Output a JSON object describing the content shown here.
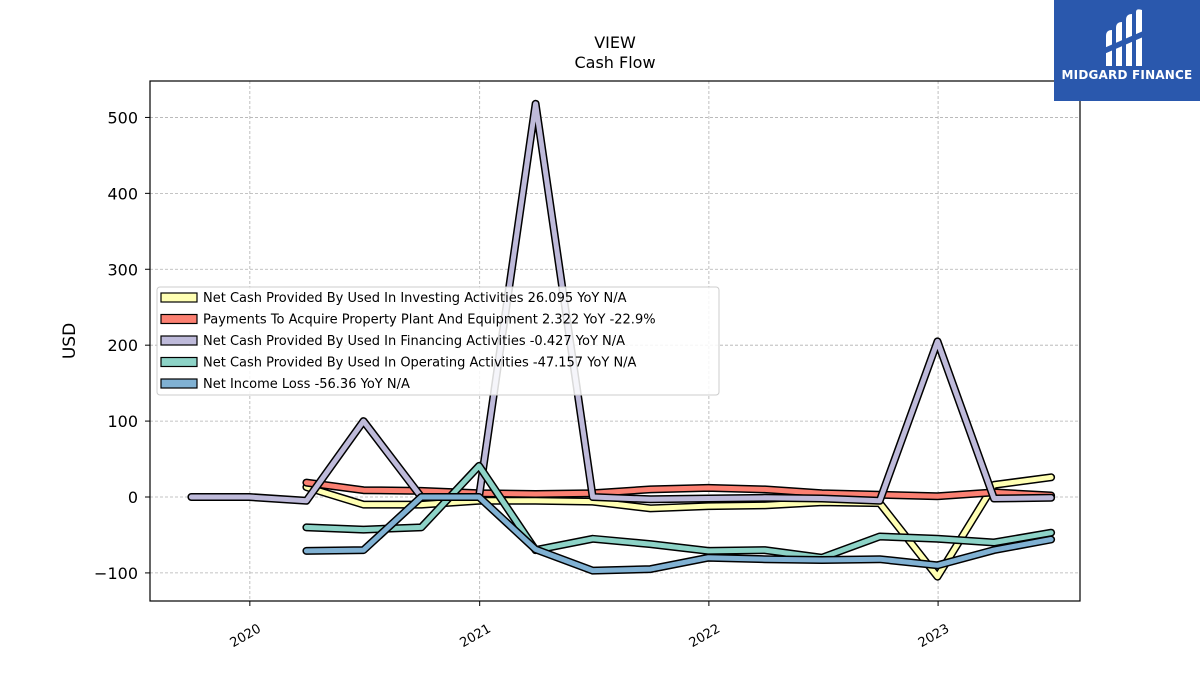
{
  "chart_data": {
    "type": "line",
    "title": "VIEW",
    "subtitle": "Cash Flow",
    "ylabel": "USD",
    "xlabel": "",
    "ylim": [
      -137,
      548
    ],
    "xlim": [
      "2019-07-26",
      "2023-08-15"
    ],
    "x_ticks": [
      "2020",
      "2021",
      "2022",
      "2023"
    ],
    "y_ticks": [
      -100,
      0,
      100,
      200,
      300,
      400,
      500
    ],
    "grid": true,
    "legend_position": "center-left",
    "series": [
      {
        "name": "Net Cash Provided By Used In Investing Activities  26.095 YoY N/A",
        "color": "#ffffb3",
        "x": [
          "2020-03-31",
          "2020-06-30",
          "2020-09-30",
          "2020-12-31",
          "2021-03-31",
          "2021-06-30",
          "2021-09-30",
          "2021-12-31",
          "2022-03-31",
          "2022-06-30",
          "2022-09-30",
          "2022-12-31",
          "2023-03-31",
          "2023-06-30"
        ],
        "values": [
          13,
          -10,
          -10,
          -5,
          -5,
          -6,
          -15,
          -12,
          -11,
          -7,
          -8,
          -105,
          16,
          26
        ]
      },
      {
        "name": "Payments To Acquire Property Plant And Equipment  2.322 YoY -22.9%",
        "color": "#fb8072",
        "x": [
          "2020-03-31",
          "2020-06-30",
          "2020-09-30",
          "2020-12-31",
          "2021-03-31",
          "2021-06-30",
          "2021-09-30",
          "2021-12-31",
          "2022-03-31",
          "2022-06-30",
          "2022-09-30",
          "2022-12-31",
          "2023-03-31",
          "2023-06-30"
        ],
        "values": [
          19,
          9,
          8,
          5,
          4,
          5,
          10,
          12,
          10,
          5,
          3,
          1,
          6,
          2
        ]
      },
      {
        "name": "Net Cash Provided By Used In Financing Activities  -0.427 YoY N/A",
        "color": "#bebada",
        "x": [
          "2019-09-30",
          "2019-12-31",
          "2020-03-31",
          "2020-06-30",
          "2020-09-30",
          "2020-12-31",
          "2021-03-31",
          "2021-06-30",
          "2021-09-30",
          "2021-12-31",
          "2022-03-31",
          "2022-06-30",
          "2022-09-30",
          "2022-12-31",
          "2023-03-31",
          "2023-06-30"
        ],
        "values": [
          0,
          0,
          -5,
          100,
          0,
          0,
          518,
          0,
          -3,
          -2,
          -1,
          -2,
          -5,
          205,
          -2,
          -1
        ]
      },
      {
        "name": "Net Cash Provided By Used In Operating Activities  -47.157 YoY N/A",
        "color": "#8dd3c7",
        "x": [
          "2020-03-31",
          "2020-06-30",
          "2020-09-30",
          "2020-12-31",
          "2021-03-31",
          "2021-06-30",
          "2021-09-30",
          "2021-12-31",
          "2022-03-31",
          "2022-06-30",
          "2022-09-30",
          "2022-12-31",
          "2023-03-31",
          "2023-06-30"
        ],
        "values": [
          -40,
          -43,
          -40,
          41,
          -70,
          -55,
          -62,
          -71,
          -70,
          -80,
          -52,
          -55,
          -60,
          -47
        ]
      },
      {
        "name": "Net Income Loss  -56.36 YoY N/A",
        "color": "#80b1d3",
        "x": [
          "2020-03-31",
          "2020-06-30",
          "2020-09-30",
          "2020-12-31",
          "2021-03-31",
          "2021-06-30",
          "2021-09-30",
          "2021-12-31",
          "2022-03-31",
          "2022-06-30",
          "2022-09-30",
          "2022-12-31",
          "2023-03-31",
          "2023-06-30"
        ],
        "values": [
          -71,
          -70,
          0,
          0,
          -69,
          -97,
          -95,
          -80,
          -82,
          -83,
          -82,
          -90,
          -70,
          -56
        ]
      }
    ]
  },
  "logo": {
    "text": "MIDGARD FINANCE",
    "background": "#2a58ad"
  }
}
